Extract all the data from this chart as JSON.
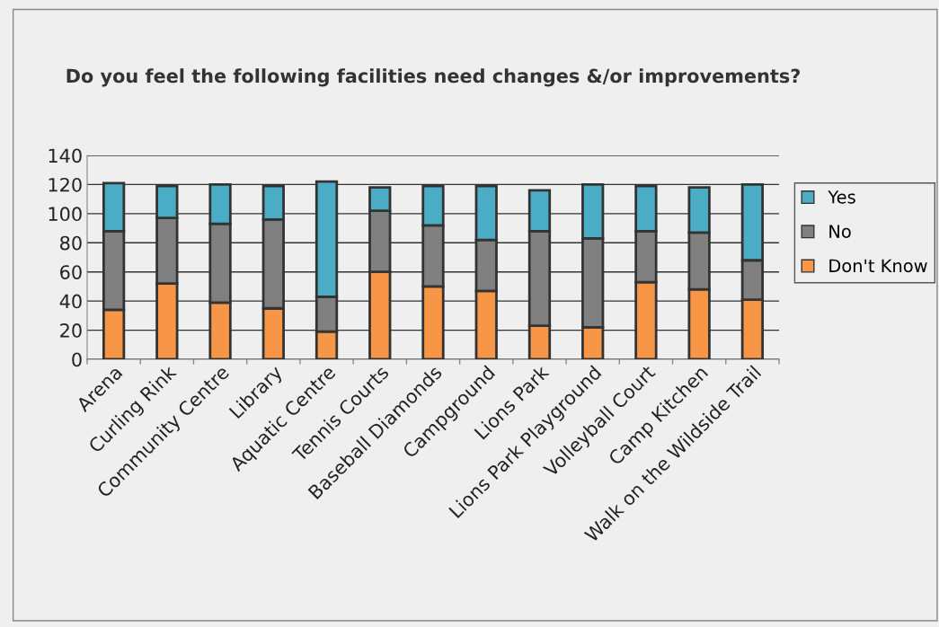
{
  "chart_data": {
    "type": "bar",
    "title": "Do you feel the following facilities need changes &/or improvements?",
    "categories": [
      "Arena",
      "Curling Rink",
      "Community Centre",
      "Library",
      "Aquatic Centre",
      "Tennis Courts",
      "Baseball Diamonds",
      "Campground",
      "Lions Park",
      "Lions Park Playground",
      "Volleyball Court",
      "Camp Kitchen",
      "Walk on the Wildside Trail"
    ],
    "series": [
      {
        "name": "Don't Know",
        "color": "#f79646",
        "values": [
          34,
          52,
          39,
          35,
          19,
          60,
          50,
          47,
          23,
          22,
          53,
          48,
          41
        ]
      },
      {
        "name": "No",
        "color": "#808080",
        "values": [
          54,
          45,
          54,
          61,
          24,
          42,
          42,
          35,
          65,
          61,
          35,
          39,
          27
        ]
      },
      {
        "name": "Yes",
        "color": "#4bacc6",
        "values": [
          33,
          22,
          27,
          23,
          79,
          16,
          27,
          37,
          28,
          37,
          31,
          31,
          52
        ]
      }
    ],
    "stacked": true,
    "ylim": [
      0,
      140
    ],
    "yticks": [
      0,
      20,
      40,
      60,
      80,
      100,
      120,
      140
    ],
    "grid": "y",
    "legend": "right"
  }
}
